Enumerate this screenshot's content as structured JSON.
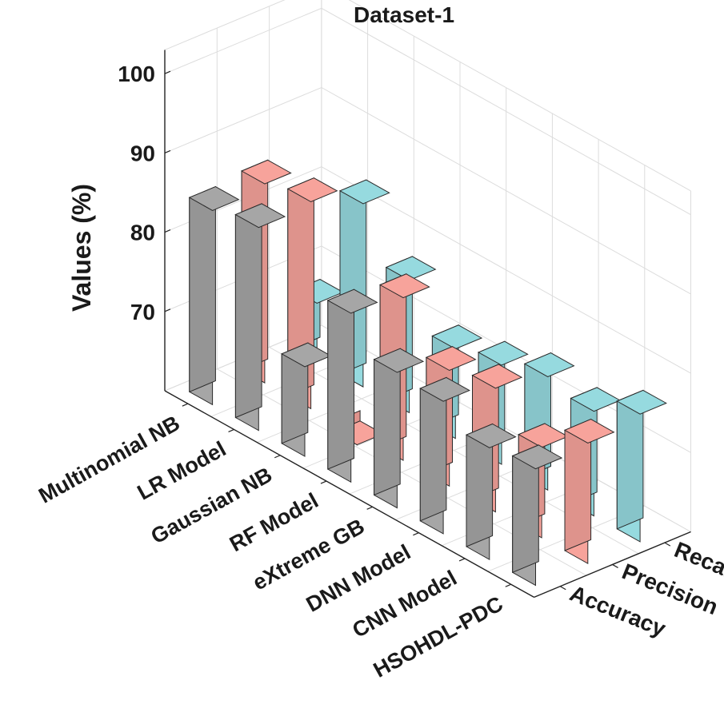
{
  "chart_data": {
    "type": "bar",
    "title": "Dataset-1",
    "xlabel": "",
    "ylabel": "Values (%)",
    "zlim": [
      60,
      103
    ],
    "z_ticks": [
      "70",
      "80",
      "90",
      "100"
    ],
    "categories": [
      "Multinomial NB",
      "LR Model",
      "Gaussian NB",
      "RF Model",
      "eXtreme GB",
      "DNN Model",
      "CNN Model",
      "HSOHDL-PDC"
    ],
    "series": [
      {
        "name": "Accuracy",
        "color": "#a6a6a6",
        "values": [
          84.5,
          85.6,
          71.3,
          81.3,
          77.1,
          76.7,
          74.1,
          74.7
        ]
      },
      {
        "name": "Precision",
        "color": "#f7a39b",
        "values": [
          85.1,
          86.1,
          58.7,
          80.5,
          74.6,
          75.6,
          71.4,
          75.2
        ]
      },
      {
        "name": "Recall",
        "color": "#96dadf",
        "values": [
          67.3,
          83.1,
          76.7,
          71.3,
          72.5,
          74.3,
          73.2,
          76.1
        ]
      }
    ]
  }
}
